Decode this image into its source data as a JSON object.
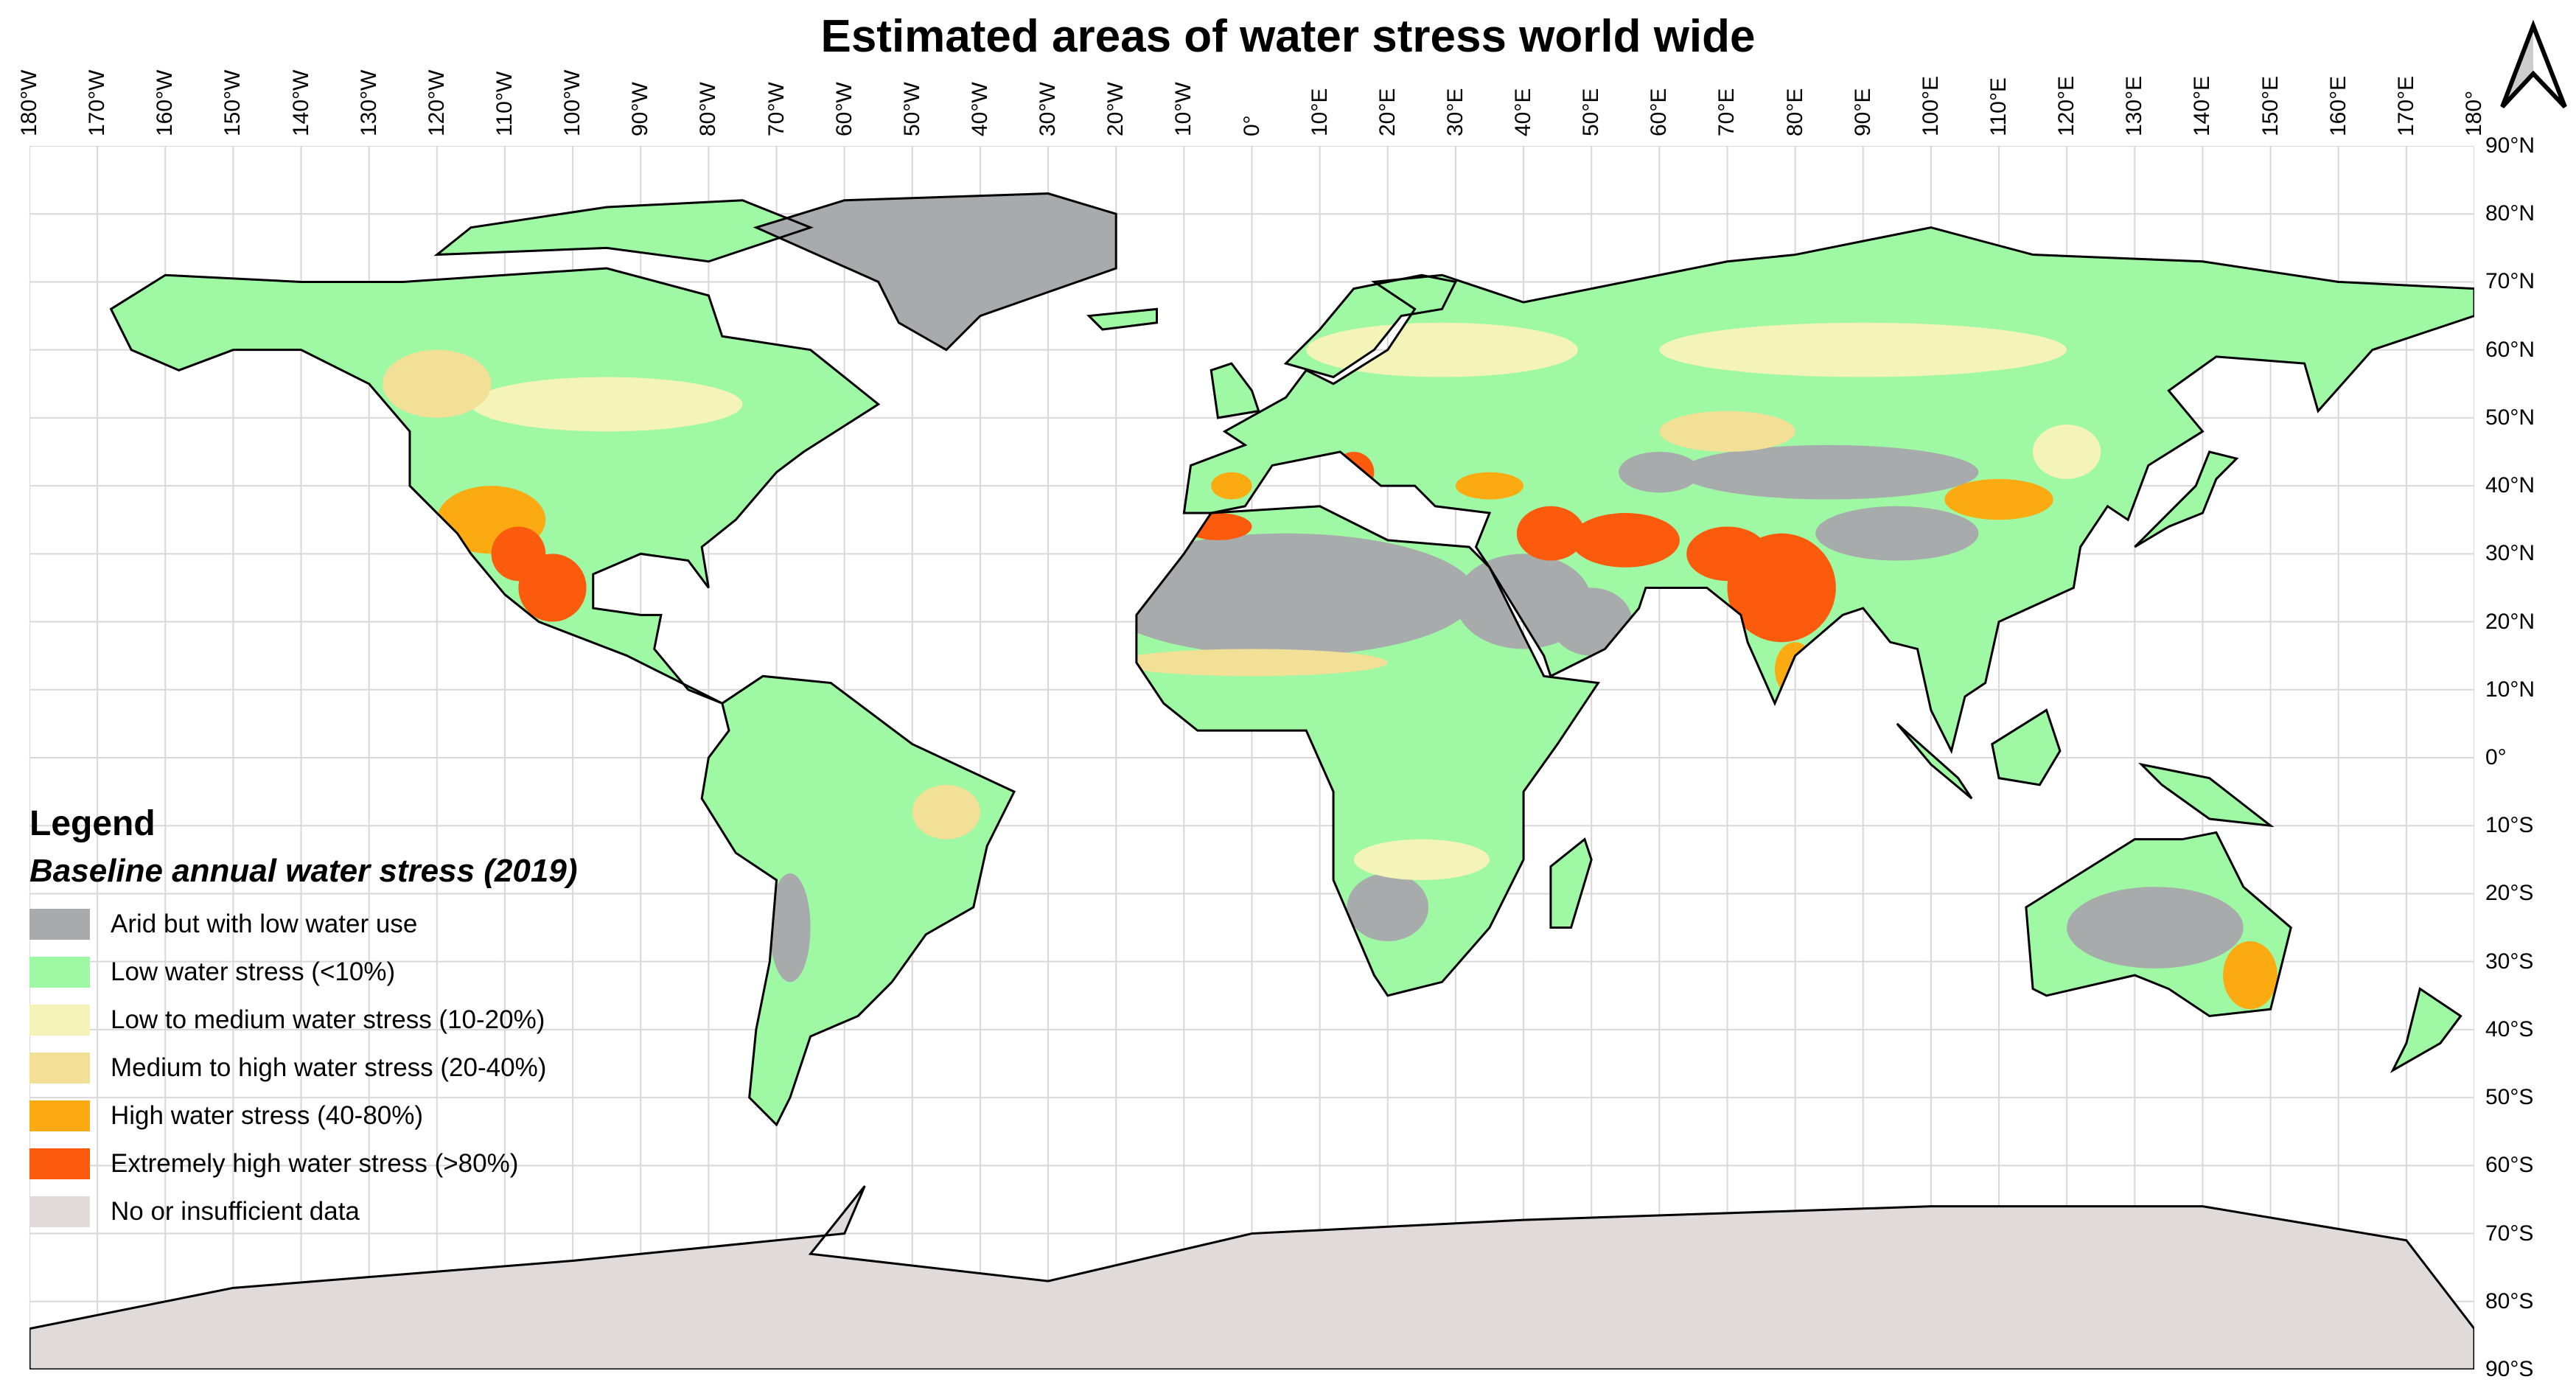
{
  "title": "Estimated areas of water stress world wide",
  "north_arrow": "north-arrow-icon",
  "longitude_labels": [
    "180°W",
    "170°W",
    "160°W",
    "150°W",
    "140°W",
    "130°W",
    "120°W",
    "110°W",
    "100°W",
    "90°W",
    "80°W",
    "70°W",
    "60°W",
    "50°W",
    "40°W",
    "30°W",
    "20°W",
    "10°W",
    "0°",
    "10°E",
    "20°E",
    "30°E",
    "40°E",
    "50°E",
    "60°E",
    "70°E",
    "80°E",
    "90°E",
    "100°E",
    "110°E",
    "120°E",
    "130°E",
    "140°E",
    "150°E",
    "160°E",
    "170°E",
    "180°"
  ],
  "latitude_labels": [
    "90°N",
    "80°N",
    "70°N",
    "60°N",
    "50°N",
    "40°N",
    "30°N",
    "20°N",
    "10°N",
    "0°",
    "10°S",
    "20°S",
    "30°S",
    "40°S",
    "50°S",
    "60°S",
    "70°S",
    "80°S",
    "90°S"
  ],
  "legend": {
    "title": "Legend",
    "subtitle": "Baseline annual water stress (2019)",
    "items": [
      {
        "label": "Arid but with low water use",
        "color": "#a8abab"
      },
      {
        "label": "Low water stress (<10%)",
        "color": "#9ff8a3"
      },
      {
        "label": "Low to medium water stress (10-20%)",
        "color": "#f4f4b8"
      },
      {
        "label": "Medium to high water stress (20-40%)",
        "color": "#f2e096"
      },
      {
        "label": "High water stress (40-80%)",
        "color": "#fbab11"
      },
      {
        "label": "Extremely high water stress (>80%)",
        "color": "#fc5b0e"
      },
      {
        "label": "No or insufficient data",
        "color": "#e1dadb"
      }
    ]
  }
}
